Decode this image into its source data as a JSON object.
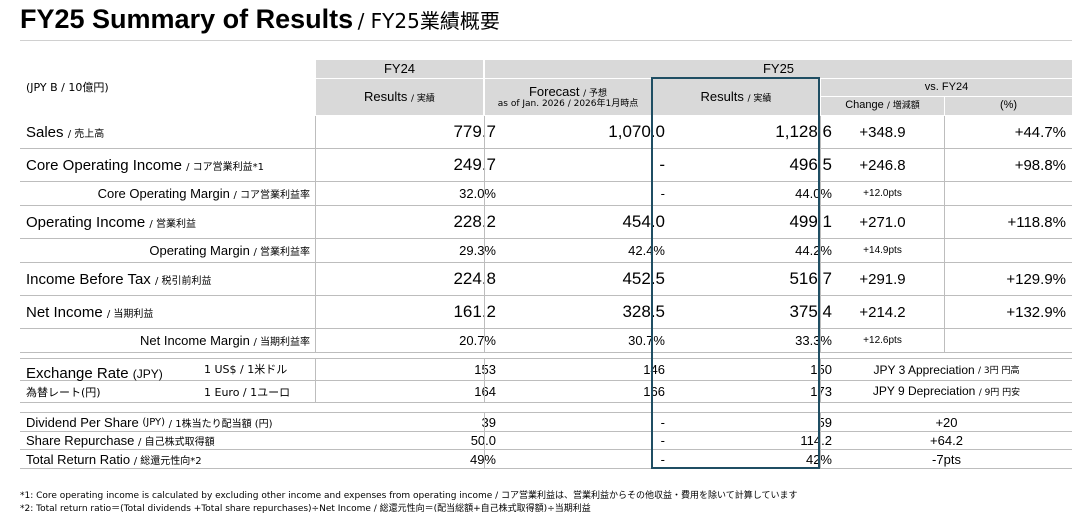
{
  "title": {
    "main": "FY25 Summary of Results",
    "sub": "/ FY25業績概要"
  },
  "unit": "(JPY B / 10億円)",
  "headers": {
    "fy24": "FY24",
    "fy25": "FY25",
    "fy24_results": "Results",
    "fy24_results_jp": "/ 実績",
    "forecast": "Forecast",
    "forecast_jp": "/ 予想",
    "forecast_asof": "as of Jan. 2026 / 2026年1月時点",
    "fy25_results": "Results",
    "fy25_results_jp": "/ 実績",
    "vs": "vs. FY24",
    "change": "Change",
    "change_jp": "/ 増減額",
    "pct": "(%)"
  },
  "rows": [
    {
      "label": "Sales",
      "label_jp": "/ 売上高",
      "fy24": "779.7",
      "forecast": "1,070.0",
      "fy25": "1,128.6",
      "change": "+348.9",
      "pct": "+44.7%"
    },
    {
      "label": "Core Operating Income",
      "label_jp": "/ コア営業利益*1",
      "fy24": "249.7",
      "forecast": "-",
      "fy25": "496.5",
      "change": "+246.8",
      "pct": "+98.8%"
    },
    {
      "label": "Core Operating Margin",
      "label_jp": "/ コア営業利益率",
      "fy24": "32.0%",
      "forecast": "-",
      "fy25": "44.0%",
      "change": "+12.0pts",
      "pct": ""
    },
    {
      "label": "Operating Income",
      "label_jp": "/ 営業利益",
      "fy24": "228.2",
      "forecast": "454.0",
      "fy25": "499.1",
      "change": "+271.0",
      "pct": "+118.8%"
    },
    {
      "label": "Operating Margin",
      "label_jp": "/ 営業利益率",
      "fy24": "29.3%",
      "forecast": "42.4%",
      "fy25": "44.2%",
      "change": "+14.9pts",
      "pct": ""
    },
    {
      "label": "Income Before Tax",
      "label_jp": "/ 税引前利益",
      "fy24": "224.8",
      "forecast": "452.5",
      "fy25": "516.7",
      "change": "+291.9",
      "pct": "+129.9%"
    },
    {
      "label": "Net Income",
      "label_jp": "/ 当期利益",
      "fy24": "161.2",
      "forecast": "328.5",
      "fy25": "375.4",
      "change": "+214.2",
      "pct": "+132.9%"
    },
    {
      "label": "Net Income Margin",
      "label_jp": "/ 当期利益率",
      "fy24": "20.7%",
      "forecast": "30.7%",
      "fy25": "33.3%",
      "change": "+12.6pts",
      "pct": ""
    }
  ],
  "exchange": {
    "label": "Exchange Rate",
    "label_unit": "(JPY)",
    "label_jp": "為替レート(円)",
    "usd": {
      "label": "1 US$ / 1米ドル",
      "fy24": "153",
      "forecast": "146",
      "fy25": "150",
      "vs": "JPY 3 Appreciation",
      "vs_jp": "/ 3円 円高"
    },
    "eur": {
      "label": "1 Euro / 1ユーロ",
      "fy24": "164",
      "forecast": "166",
      "fy25": "173",
      "vs": "JPY 9 Depreciation",
      "vs_jp": "/ 9円 円安"
    }
  },
  "returns": [
    {
      "label": "Dividend Per Share",
      "label_unit": "(JPY)",
      "label_jp": "/ 1株当たり配当額 (円)",
      "fy24": "39",
      "forecast": "-",
      "fy25": "59",
      "vs": "+20"
    },
    {
      "label": "Share Repurchase",
      "label_unit": "",
      "label_jp": "/ 自己株式取得額",
      "fy24": "50.0",
      "forecast": "-",
      "fy25": "114.2",
      "vs": "+64.2"
    },
    {
      "label": "Total Return Ratio",
      "label_unit": "",
      "label_jp": "/ 総還元性向*2",
      "fy24": "49%",
      "forecast": "-",
      "fy25": "42%",
      "vs": "-7pts"
    }
  ],
  "footnotes": [
    "*1:  Core operating income is calculated by excluding other income and expenses from operating income / コア営業利益は、営業利益からその他収益・費用を除いて計算しています",
    "*2:  Total return ratio＝(Total dividends +Total share repurchases)÷Net Income /  総還元性向＝(配当総額+自己株式取得額)÷当期利益"
  ]
}
